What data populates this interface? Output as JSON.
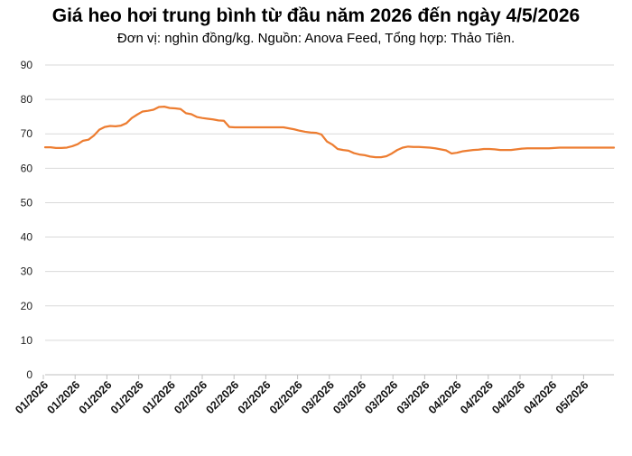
{
  "chart_data": {
    "type": "line",
    "title": "Giá heo hơi trung bình từ đầu năm 2026 đến ngày 4/5/2026",
    "subtitle": "Đơn vị: nghìn đồng/kg. Nguồn: Anova Feed, Tổng hợp: Thảo Tiên.",
    "xlabel": "",
    "ylabel": "",
    "ylim": [
      0,
      90
    ],
    "yticks": [
      0,
      10,
      20,
      30,
      40,
      50,
      60,
      70,
      80,
      90
    ],
    "xtick_labels": [
      "01/2026",
      "01/2026",
      "01/2026",
      "01/2026",
      "01/2026",
      "02/2026",
      "02/2026",
      "02/2026",
      "02/2026",
      "03/2026",
      "03/2026",
      "03/2026",
      "03/2026",
      "04/2026",
      "04/2026",
      "04/2026",
      "04/2026",
      "05/2026"
    ],
    "grid": "horizontal",
    "line_color": "#ED7D31",
    "series": [
      {
        "values": [
          66.1,
          66.1,
          65.9,
          65.9,
          66.0,
          66.4,
          67.0,
          68.0,
          68.3,
          69.5,
          71.2,
          72.0,
          72.3,
          72.2,
          72.4,
          73.1,
          74.6,
          75.6,
          76.5,
          76.7,
          77.0,
          77.8,
          77.9,
          77.5,
          77.4,
          77.2,
          76.0,
          75.7,
          74.9,
          74.6,
          74.4,
          74.2,
          73.9,
          73.8,
          72.0,
          71.9,
          71.9,
          71.9,
          71.9,
          71.9,
          71.9,
          71.9,
          71.9,
          71.9,
          71.9,
          71.6,
          71.3,
          70.9,
          70.6,
          70.4,
          70.3,
          69.8,
          67.8,
          66.9,
          65.6,
          65.3,
          65.1,
          64.4,
          64.0,
          63.8,
          63.4,
          63.2,
          63.2,
          63.5,
          64.3,
          65.3,
          66.0,
          66.3,
          66.2,
          66.2,
          66.1,
          66.0,
          65.8,
          65.5,
          65.2,
          64.3,
          64.5,
          64.9,
          65.1,
          65.3,
          65.4,
          65.6,
          65.6,
          65.5,
          65.3,
          65.3,
          65.3,
          65.5,
          65.7,
          65.8,
          65.8,
          65.8,
          65.8,
          65.8,
          65.9,
          66.0,
          66.0,
          66.0,
          66.0,
          66.0,
          66.0,
          66.0,
          66.0,
          66.0,
          66.0,
          66.0
        ]
      }
    ]
  }
}
